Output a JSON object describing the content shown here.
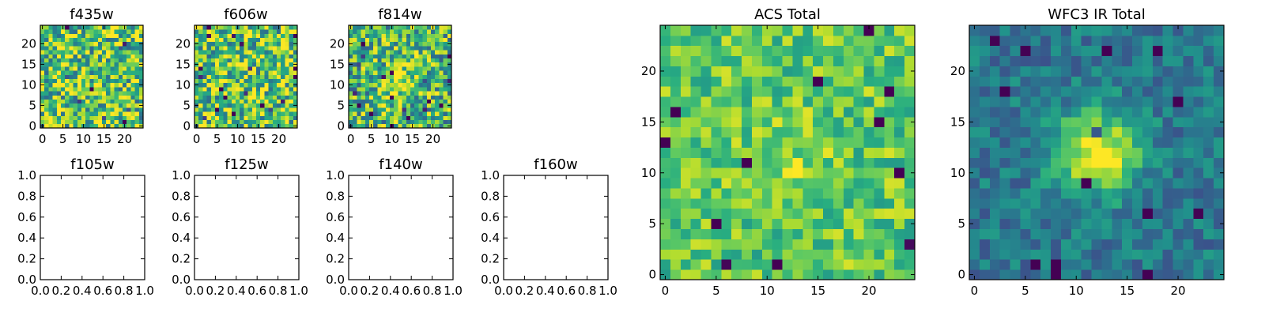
{
  "colors": {
    "viridis": [
      "#440154",
      "#472d7b",
      "#3b528b",
      "#2c728e",
      "#21918c",
      "#28ae80",
      "#5ec962",
      "#addc30",
      "#fde725"
    ],
    "frame": "#000000"
  },
  "chart_data": [
    {
      "type": "heatmap",
      "title": "f435w",
      "colormap": "viridis",
      "xlim": [
        -0.5,
        24.5
      ],
      "ylim": [
        -0.5,
        24.5
      ],
      "xticks": [
        "0",
        "5",
        "10",
        "15",
        "20"
      ],
      "xtick_values": [
        0,
        5,
        10,
        15,
        20
      ],
      "yticks": [
        "0",
        "5",
        "10",
        "15",
        "20"
      ],
      "ytick_values": [
        0,
        5,
        10,
        15,
        20
      ],
      "grid_size": 25,
      "source_peak": [
        12,
        11
      ],
      "source_strength": 0.0,
      "noise": 0.38,
      "base": 0.72,
      "seed": 11
    },
    {
      "type": "heatmap",
      "title": "f606w",
      "colormap": "viridis",
      "xlim": [
        -0.5,
        24.5
      ],
      "ylim": [
        -0.5,
        24.5
      ],
      "xticks": [
        "0",
        "5",
        "10",
        "15",
        "20"
      ],
      "xtick_values": [
        0,
        5,
        10,
        15,
        20
      ],
      "yticks": [
        "0",
        "5",
        "10",
        "15",
        "20"
      ],
      "ytick_values": [
        0,
        5,
        10,
        15,
        20
      ],
      "grid_size": 25,
      "source_peak": [
        12,
        11
      ],
      "source_strength": 0.0,
      "noise": 0.38,
      "base": 0.72,
      "seed": 23
    },
    {
      "type": "heatmap",
      "title": "f814w",
      "colormap": "viridis",
      "xlim": [
        -0.5,
        24.5
      ],
      "ylim": [
        -0.5,
        24.5
      ],
      "xticks": [
        "0",
        "5",
        "10",
        "15",
        "20"
      ],
      "xtick_values": [
        0,
        5,
        10,
        15,
        20
      ],
      "yticks": [
        "0",
        "5",
        "10",
        "15",
        "20"
      ],
      "ytick_values": [
        0,
        5,
        10,
        15,
        20
      ],
      "grid_size": 25,
      "source_peak": [
        12,
        11
      ],
      "source_strength": 0.35,
      "noise": 0.36,
      "base": 0.66,
      "seed": 37
    },
    {
      "type": "empty",
      "title": "f105w",
      "xlim": [
        0,
        1
      ],
      "ylim": [
        0,
        1
      ],
      "xticks": [
        "0.0",
        "0.2",
        "0.4",
        "0.6",
        "0.8",
        "1.0"
      ],
      "xtick_values": [
        0,
        0.2,
        0.4,
        0.6,
        0.8,
        1.0
      ],
      "yticks": [
        "0.0",
        "0.2",
        "0.4",
        "0.6",
        "0.8",
        "1.0"
      ],
      "ytick_values": [
        0,
        0.2,
        0.4,
        0.6,
        0.8,
        1.0
      ]
    },
    {
      "type": "empty",
      "title": "f125w",
      "xlim": [
        0,
        1
      ],
      "ylim": [
        0,
        1
      ],
      "xticks": [
        "0.0",
        "0.2",
        "0.4",
        "0.6",
        "0.8",
        "1.0"
      ],
      "xtick_values": [
        0,
        0.2,
        0.4,
        0.6,
        0.8,
        1.0
      ],
      "yticks": [
        "0.0",
        "0.2",
        "0.4",
        "0.6",
        "0.8",
        "1.0"
      ],
      "ytick_values": [
        0,
        0.2,
        0.4,
        0.6,
        0.8,
        1.0
      ]
    },
    {
      "type": "empty",
      "title": "f140w",
      "xlim": [
        0,
        1
      ],
      "ylim": [
        0,
        1
      ],
      "xticks": [
        "0.0",
        "0.2",
        "0.4",
        "0.6",
        "0.8",
        "1.0"
      ],
      "xtick_values": [
        0,
        0.2,
        0.4,
        0.6,
        0.8,
        1.0
      ],
      "yticks": [
        "0.0",
        "0.2",
        "0.4",
        "0.6",
        "0.8",
        "1.0"
      ],
      "ytick_values": [
        0,
        0.2,
        0.4,
        0.6,
        0.8,
        1.0
      ]
    },
    {
      "type": "empty",
      "title": "f160w",
      "xlim": [
        0,
        1
      ],
      "ylim": [
        0,
        1
      ],
      "xticks": [
        "0.0",
        "0.2",
        "0.4",
        "0.6",
        "0.8",
        "1.0"
      ],
      "xtick_values": [
        0,
        0.2,
        0.4,
        0.6,
        0.8,
        1.0
      ],
      "yticks": [
        "0.0",
        "0.2",
        "0.4",
        "0.6",
        "0.8",
        "1.0"
      ],
      "ytick_values": [
        0,
        0.2,
        0.4,
        0.6,
        0.8,
        1.0
      ]
    },
    {
      "type": "heatmap",
      "title": "ACS Total",
      "colormap": "viridis",
      "xlim": [
        -0.5,
        24.5
      ],
      "ylim": [
        -0.5,
        24.5
      ],
      "xticks": [
        "0",
        "5",
        "10",
        "15",
        "20"
      ],
      "xtick_values": [
        0,
        5,
        10,
        15,
        20
      ],
      "yticks": [
        "0",
        "5",
        "10",
        "15",
        "20"
      ],
      "ytick_values": [
        0,
        5,
        10,
        15,
        20
      ],
      "grid_size": 25,
      "source_peak": [
        13,
        11
      ],
      "source_strength": 0.12,
      "noise": 0.2,
      "base": 0.74,
      "seed": 53
    },
    {
      "type": "heatmap",
      "title": "WFC3 IR Total",
      "colormap": "viridis",
      "xlim": [
        -0.5,
        24.5
      ],
      "ylim": [
        -0.5,
        24.5
      ],
      "xticks": [
        "0",
        "5",
        "10",
        "15",
        "20"
      ],
      "xtick_values": [
        0,
        5,
        10,
        15,
        20
      ],
      "yticks": [
        "0",
        "5",
        "10",
        "15",
        "20"
      ],
      "ytick_values": [
        0,
        5,
        10,
        15,
        20
      ],
      "grid_size": 25,
      "source_peak": [
        12,
        12
      ],
      "source_strength": 0.62,
      "noise": 0.15,
      "base": 0.4,
      "seed": 71
    }
  ]
}
